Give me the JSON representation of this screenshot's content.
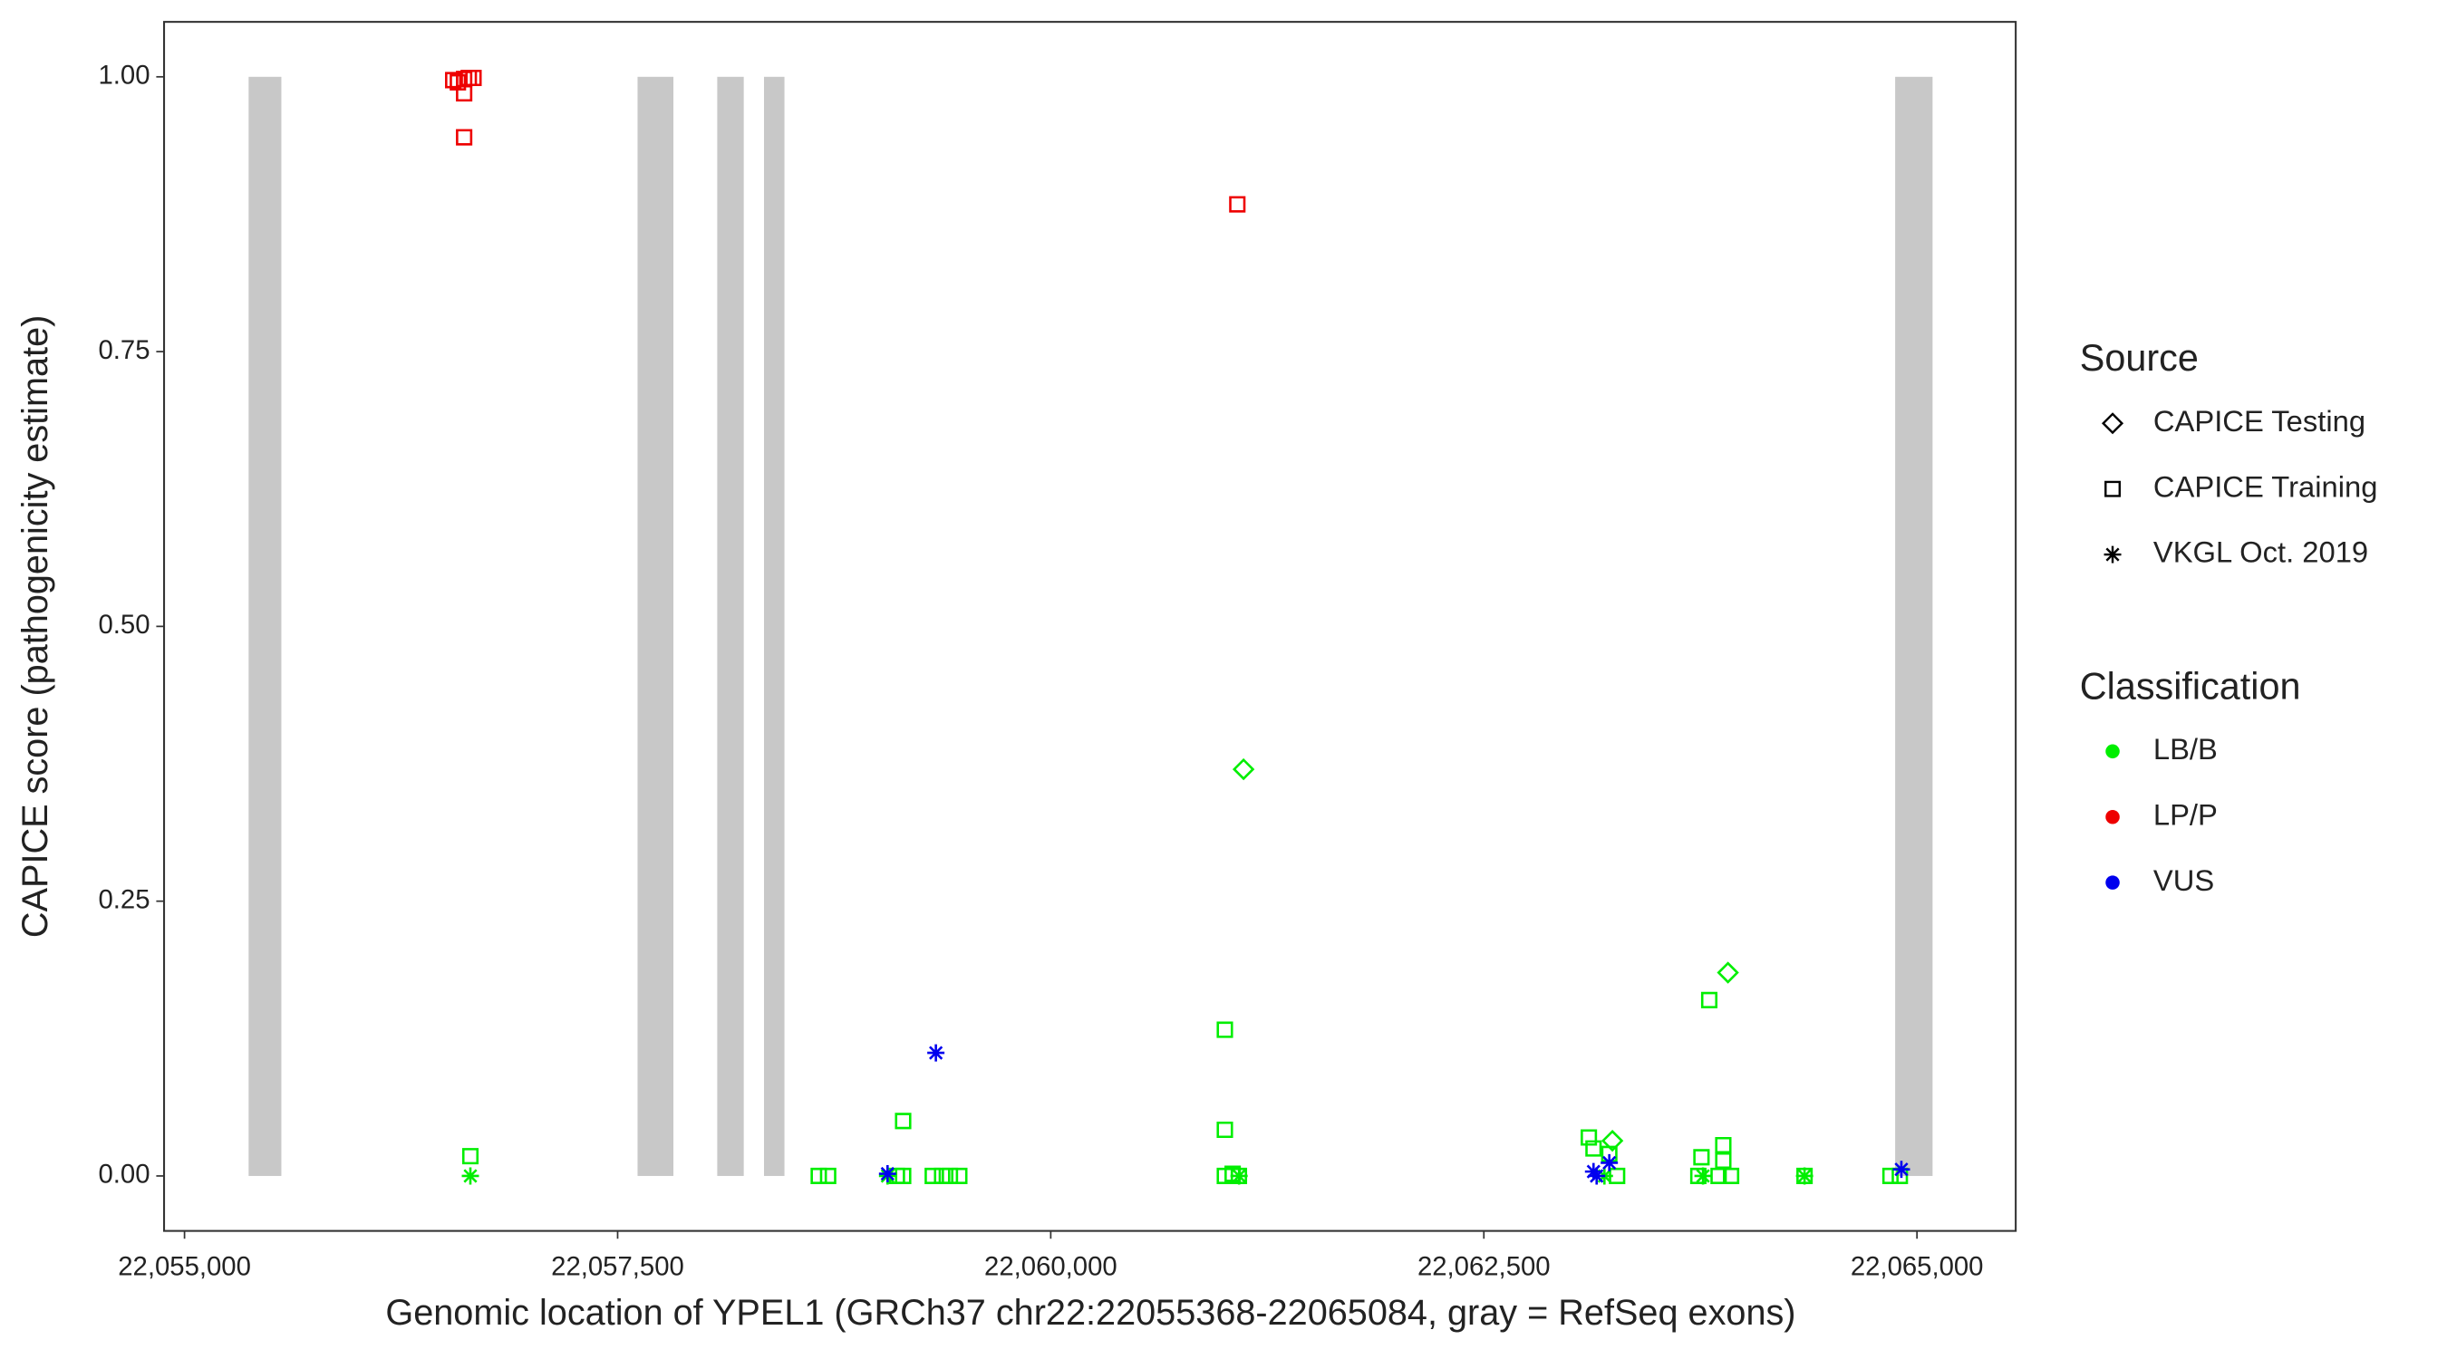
{
  "chart_data": {
    "type": "scatter",
    "x_label": "Genomic location of YPEL1 (GRCh37 chr22:22055368-22065084, gray = RefSeq exons)",
    "y_label": "CAPICE score (pathogenicity estimate)",
    "xlim": [
      22054882,
      22065570
    ],
    "ylim": [
      -0.05,
      1.05
    ],
    "xticks": [
      {
        "value": 22055000,
        "label": "22,055,000"
      },
      {
        "value": 22057500,
        "label": "22,057,500"
      },
      {
        "value": 22060000,
        "label": "22,060,000"
      },
      {
        "value": 22062500,
        "label": "22,062,500"
      },
      {
        "value": 22065000,
        "label": "22,065,000"
      }
    ],
    "yticks": [
      {
        "value": 0,
        "label": "0.00"
      },
      {
        "value": 0.25,
        "label": "0.25"
      },
      {
        "value": 0.5,
        "label": "0.50"
      },
      {
        "value": 0.75,
        "label": "0.75"
      },
      {
        "value": 1,
        "label": "1.00"
      }
    ],
    "exon_color": "#c8c8c8",
    "exons": [
      [
        22055370,
        22055559
      ],
      [
        22057615,
        22057822
      ],
      [
        22058075,
        22058228
      ],
      [
        22058345,
        22058463
      ],
      [
        22064874,
        22065090
      ]
    ],
    "legend": {
      "source": {
        "title": "Source",
        "items": [
          {
            "name": "CAPICE Testing",
            "shape": "diamond"
          },
          {
            "name": "CAPICE Training",
            "shape": "square"
          },
          {
            "name": "VKGL Oct. 2019",
            "shape": "asterisk"
          }
        ]
      },
      "classification": {
        "title": "Classification",
        "items": [
          {
            "name": "LB/B",
            "color": "#00ee00"
          },
          {
            "name": "LP/P",
            "color": "#ee0000"
          },
          {
            "name": "VUS",
            "color": "#0000ee"
          }
        ]
      }
    },
    "series": [
      {
        "source": 1,
        "classification": 1,
        "x": [
          22056551,
          22056578,
          22056614,
          22056641,
          22056668,
          22056614,
          22056614,
          22061077
        ],
        "values": [
          0.997,
          0.995,
          0.998,
          0.999,
          0.999,
          0.985,
          0.945,
          0.884
        ]
      },
      {
        "source": 1,
        "classification": 0,
        "x": [
          22056650,
          22058661,
          22058715,
          22059148,
          22059112,
          22059148,
          22059319,
          22059373,
          22059418,
          22059472,
          22061005,
          22061005,
          22061005,
          22061050,
          22061086,
          22063106,
          22063133,
          22063224,
          22063269,
          22063756,
          22063801,
          22063882,
          22063882,
          22063738,
          22063855,
          22063927,
          22064351,
          22064847,
          22064901
        ],
        "values": [
          0.018,
          0,
          0,
          0.05,
          0,
          0,
          0,
          0,
          0,
          0,
          0.133,
          0.042,
          0,
          0.002,
          0,
          0.035,
          0.025,
          0.02,
          0,
          0.017,
          0.16,
          0.028,
          0.014,
          0,
          0,
          0,
          0,
          0,
          0
        ]
      },
      {
        "source": 0,
        "classification": 0,
        "x": [
          22061113,
          22063909,
          22063242
        ],
        "values": [
          0.37,
          0.185,
          0.032
        ]
      },
      {
        "source": 2,
        "classification": 0,
        "x": [
          22056650,
          22059058,
          22061087,
          22063196,
          22063765,
          22064351
        ],
        "values": [
          0,
          0,
          0,
          0,
          0,
          0
        ]
      },
      {
        "source": 2,
        "classification": 2,
        "x": [
          22059337,
          22059058,
          22063133,
          22063151,
          22063224,
          22064910
        ],
        "values": [
          0.112,
          0.002,
          0.004,
          0,
          0.012,
          0.006
        ]
      }
    ]
  }
}
